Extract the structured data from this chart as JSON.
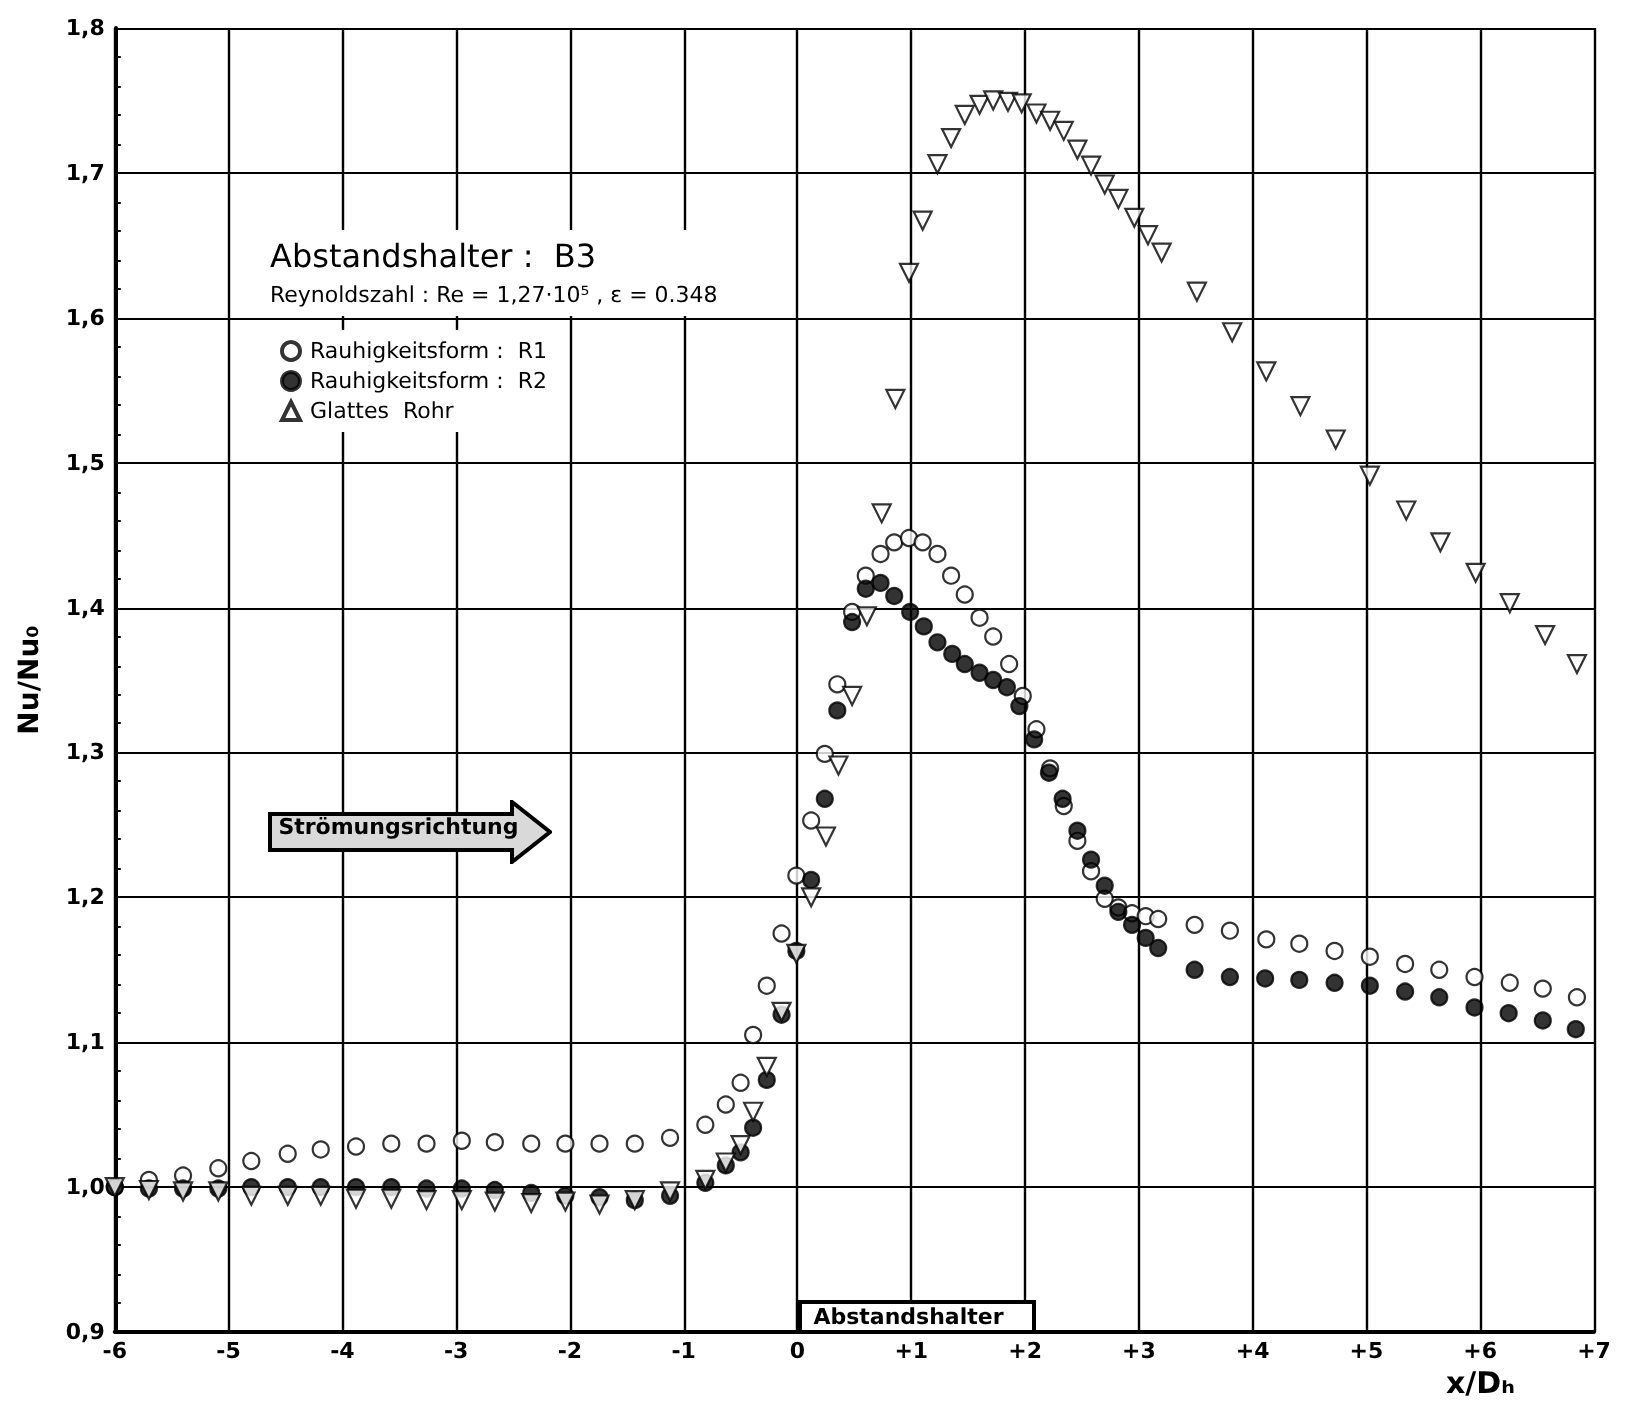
{
  "chart_data": {
    "type": "scatter",
    "title": "Abstandshalter :  B3",
    "subtitle": "Reynoldszahl : Re = 1,27·10⁵ , ε = 0.348",
    "xlabel": "x/Dₕ",
    "ylabel": "Nu/Nu₀",
    "annotations": [
      "Strömungsrichtung",
      "Abstandshalter"
    ],
    "xlim": [
      -6,
      7
    ],
    "ylim": [
      0.9,
      1.8
    ],
    "xticks": [
      -6,
      -5,
      -4,
      -3,
      -2,
      -1,
      0,
      {
        "value": 1,
        "label": "+1"
      },
      {
        "value": 2,
        "label": "+2"
      },
      {
        "value": 3,
        "label": "+3"
      },
      {
        "value": 4,
        "label": "+4"
      },
      {
        "value": 5,
        "label": "+5"
      },
      {
        "value": 6,
        "label": "+6"
      },
      {
        "value": 7,
        "label": "+7"
      }
    ],
    "yticks": [
      {
        "value": 0.9,
        "label": "0,9"
      },
      {
        "value": 1.0,
        "label": "1,0"
      },
      {
        "value": 1.1,
        "label": "1,1"
      },
      {
        "value": 1.2,
        "label": "1,2"
      },
      {
        "value": 1.3,
        "label": "1,3"
      },
      {
        "value": 1.4,
        "label": "1,4"
      },
      {
        "value": 1.5,
        "label": "1,5"
      },
      {
        "value": 1.6,
        "label": "1,6"
      },
      {
        "value": 1.7,
        "label": "1,7"
      },
      {
        "value": 1.8,
        "label": "1,8"
      }
    ],
    "grid": true,
    "legend": "top left",
    "series": [
      {
        "name": "Rauhigkeitsform :  R1",
        "color": "#ffffff",
        "marker": "circle",
        "x": [
          -6,
          -5.7,
          -5.4,
          -5.09,
          -4.8,
          -4.48,
          -4.19,
          -3.88,
          -3.57,
          -3.26,
          -2.95,
          -2.66,
          -2.34,
          -2.04,
          -1.74,
          -1.43,
          -1.12,
          -0.81,
          -0.63,
          -0.5,
          -0.39,
          -0.27,
          -0.14,
          -0.01,
          0.12,
          0.24,
          0.35,
          0.48,
          0.6,
          0.73,
          0.85,
          0.98,
          1.1,
          1.23,
          1.35,
          1.47,
          1.6,
          1.72,
          1.86,
          1.98,
          2.1,
          2.22,
          2.34,
          2.46,
          2.58,
          2.7,
          2.82,
          2.94,
          3.06,
          3.17,
          3.49,
          3.8,
          4.12,
          4.41,
          4.72,
          5.03,
          5.34,
          5.64,
          5.95,
          6.26,
          6.55,
          6.85
        ],
        "values": [
          1.0,
          1.005,
          1.008,
          1.013,
          1.018,
          1.023,
          1.026,
          1.028,
          1.03,
          1.03,
          1.032,
          1.031,
          1.03,
          1.03,
          1.03,
          1.03,
          1.034,
          1.043,
          1.057,
          1.072,
          1.105,
          1.139,
          1.175,
          1.215,
          1.253,
          1.299,
          1.347,
          1.397,
          1.422,
          1.437,
          1.445,
          1.448,
          1.445,
          1.437,
          1.422,
          1.409,
          1.393,
          1.38,
          1.361,
          1.339,
          1.316,
          1.289,
          1.263,
          1.239,
          1.218,
          1.199,
          1.193,
          1.189,
          1.187,
          1.185,
          1.181,
          1.177,
          1.171,
          1.168,
          1.163,
          1.159,
          1.154,
          1.15,
          1.145,
          1.141,
          1.137,
          1.131
        ]
      },
      {
        "name": "Rauhigkeitsform :  R2",
        "color": "#000000",
        "marker": "circle",
        "x": [
          -6,
          -5.7,
          -5.4,
          -5.09,
          -4.8,
          -4.48,
          -4.19,
          -3.88,
          -3.57,
          -3.26,
          -2.95,
          -2.66,
          -2.34,
          -2.04,
          -1.74,
          -1.43,
          -1.12,
          -0.81,
          -0.63,
          -0.5,
          -0.39,
          -0.27,
          -0.14,
          -0.01,
          0.12,
          0.24,
          0.35,
          0.48,
          0.6,
          0.73,
          0.85,
          0.99,
          1.11,
          1.23,
          1.36,
          1.47,
          1.6,
          1.72,
          1.84,
          1.95,
          2.08,
          2.21,
          2.33,
          2.46,
          2.58,
          2.7,
          2.82,
          2.94,
          3.06,
          3.17,
          3.49,
          3.8,
          4.11,
          4.41,
          4.72,
          5.03,
          5.34,
          5.64,
          5.95,
          6.25,
          6.55,
          6.84
        ],
        "values": [
          1.0,
          0.999,
          0.999,
          0.999,
          1.0,
          1.0,
          1.0,
          1.0,
          1.0,
          0.999,
          0.999,
          0.998,
          0.996,
          0.994,
          0.993,
          0.991,
          0.994,
          1.003,
          1.015,
          1.024,
          1.041,
          1.074,
          1.119,
          1.163,
          1.212,
          1.268,
          1.329,
          1.39,
          1.413,
          1.417,
          1.408,
          1.397,
          1.387,
          1.376,
          1.368,
          1.361,
          1.355,
          1.35,
          1.345,
          1.332,
          1.309,
          1.286,
          1.268,
          1.246,
          1.226,
          1.208,
          1.19,
          1.181,
          1.172,
          1.165,
          1.15,
          1.145,
          1.144,
          1.143,
          1.141,
          1.139,
          1.135,
          1.131,
          1.124,
          1.12,
          1.115,
          1.109
        ]
      },
      {
        "name": "Glattes  Rohr",
        "color": "#ffffff",
        "marker": "triangle",
        "x": [
          -6,
          -5.7,
          -5.4,
          -5.09,
          -4.8,
          -4.48,
          -4.19,
          -3.88,
          -3.57,
          -3.26,
          -2.95,
          -2.66,
          -2.34,
          -2.04,
          -1.74,
          -1.43,
          -1.12,
          -0.81,
          -0.63,
          -0.5,
          -0.39,
          -0.27,
          -0.14,
          -0.01,
          0.12,
          0.25,
          0.36,
          0.48,
          0.61,
          0.74,
          0.86,
          0.98,
          1.1,
          1.23,
          1.35,
          1.47,
          1.6,
          1.72,
          1.85,
          1.97,
          2.1,
          2.22,
          2.34,
          2.46,
          2.58,
          2.7,
          2.82,
          2.96,
          3.08,
          3.2,
          3.51,
          3.82,
          4.12,
          4.42,
          4.73,
          5.03,
          5.35,
          5.65,
          5.96,
          6.26,
          6.57,
          6.85
        ],
        "values": [
          1.0,
          0.998,
          0.997,
          0.997,
          0.994,
          0.994,
          0.994,
          0.992,
          0.992,
          0.991,
          0.991,
          0.99,
          0.989,
          0.99,
          0.988,
          0.991,
          0.997,
          1.005,
          1.017,
          1.029,
          1.052,
          1.083,
          1.121,
          1.161,
          1.2,
          1.242,
          1.291,
          1.339,
          1.394,
          1.465,
          1.544,
          1.631,
          1.667,
          1.706,
          1.724,
          1.74,
          1.747,
          1.75,
          1.749,
          1.748,
          1.741,
          1.736,
          1.729,
          1.716,
          1.705,
          1.692,
          1.682,
          1.669,
          1.657,
          1.645,
          1.618,
          1.59,
          1.563,
          1.539,
          1.516,
          1.491,
          1.467,
          1.445,
          1.424,
          1.403,
          1.381,
          1.361
        ]
      }
    ]
  }
}
